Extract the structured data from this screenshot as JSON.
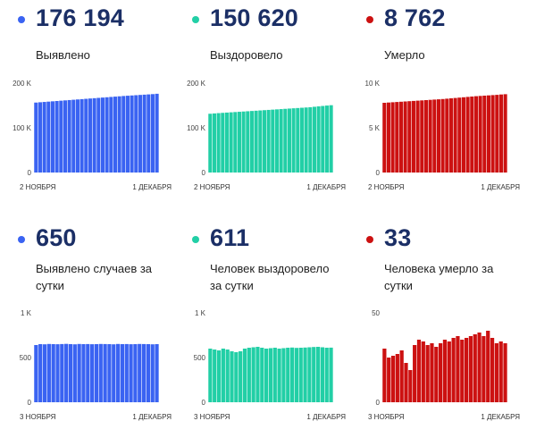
{
  "colors": {
    "blue": "#3a63f2",
    "teal": "#22cfa6",
    "red": "#cc1111",
    "dark": "#1b2f66"
  },
  "panels": [
    {
      "value": "176 194",
      "label": "Выявлено",
      "color": "blue"
    },
    {
      "value": "150 620",
      "label": "Выздоровело",
      "color": "teal"
    },
    {
      "value": "8 762",
      "label": "Умерло",
      "color": "red"
    },
    {
      "value": "650",
      "label": "Выявлено случаев за сутки",
      "color": "blue"
    },
    {
      "value": "611",
      "label": "Человек выздоровело за сутки",
      "color": "teal"
    },
    {
      "value": "33",
      "label": "Человека умерло за сутки",
      "color": "red"
    }
  ],
  "chart_data": [
    {
      "type": "bar",
      "title": "",
      "yticks": [
        "0",
        "100 K",
        "200 K"
      ],
      "ylim": [
        0,
        200000
      ],
      "x_start": "2 НОЯБРЯ",
      "x_end": "1 ДЕКАБРЯ",
      "values": [
        156500,
        157200,
        157900,
        158600,
        159300,
        160000,
        160700,
        161400,
        162100,
        162800,
        163500,
        164200,
        164900,
        165600,
        166300,
        167000,
        167700,
        168400,
        169100,
        169800,
        170500,
        171200,
        171800,
        172400,
        173000,
        173600,
        174200,
        174800,
        175400,
        176194
      ]
    },
    {
      "type": "bar",
      "title": "",
      "yticks": [
        "0",
        "100 K",
        "200 K"
      ],
      "ylim": [
        0,
        200000
      ],
      "x_start": "2 НОЯБРЯ",
      "x_end": "1 ДЕКАБРЯ",
      "values": [
        131500,
        132200,
        132900,
        133500,
        134100,
        134700,
        135300,
        135900,
        136500,
        137100,
        137700,
        138300,
        138900,
        139500,
        140100,
        140700,
        141300,
        141900,
        142500,
        143100,
        143700,
        144300,
        144900,
        145500,
        146100,
        147100,
        148000,
        148900,
        149800,
        150620
      ]
    },
    {
      "type": "bar",
      "title": "",
      "yticks": [
        "0",
        "5 K",
        "10 K"
      ],
      "ylim": [
        0,
        10000
      ],
      "x_start": "2 НОЯБРЯ",
      "x_end": "1 ДЕКАБРЯ",
      "values": [
        7800,
        7830,
        7860,
        7890,
        7920,
        7950,
        7980,
        8010,
        8040,
        8070,
        8100,
        8130,
        8160,
        8190,
        8220,
        8260,
        8300,
        8340,
        8380,
        8420,
        8460,
        8500,
        8540,
        8570,
        8600,
        8630,
        8660,
        8690,
        8730,
        8762
      ]
    },
    {
      "type": "bar",
      "title": "",
      "yticks": [
        "0",
        "500",
        "1 K"
      ],
      "ylim": [
        0,
        1000
      ],
      "x_start": "3 НОЯБРЯ",
      "x_end": "1 ДЕКАБРЯ",
      "values": [
        640,
        650,
        648,
        652,
        650,
        649,
        651,
        653,
        650,
        648,
        652,
        650,
        651,
        649,
        650,
        652,
        651,
        650,
        648,
        652,
        650,
        651,
        649,
        650,
        652,
        651,
        650,
        648,
        650
      ]
    },
    {
      "type": "bar",
      "title": "",
      "yticks": [
        "0",
        "500",
        "1 K"
      ],
      "ylim": [
        0,
        1000
      ],
      "x_start": "3 НОЯБРЯ",
      "x_end": "1 ДЕКАБРЯ",
      "values": [
        600,
        590,
        580,
        600,
        590,
        570,
        560,
        570,
        600,
        610,
        615,
        620,
        610,
        600,
        605,
        610,
        600,
        605,
        610,
        612,
        608,
        610,
        612,
        615,
        618,
        620,
        615,
        610,
        611
      ]
    },
    {
      "type": "bar",
      "title": "",
      "yticks": [
        "0",
        "50"
      ],
      "ylim": [
        0,
        50
      ],
      "x_start": "3 НОЯБРЯ",
      "x_end": "1 ДЕКАБРЯ",
      "values": [
        30,
        25,
        26,
        27,
        29,
        22,
        18,
        32,
        35,
        34,
        32,
        33,
        31,
        33,
        35,
        34,
        36,
        37,
        35,
        36,
        37,
        38,
        39,
        37,
        40,
        36,
        33,
        34,
        33
      ]
    }
  ]
}
